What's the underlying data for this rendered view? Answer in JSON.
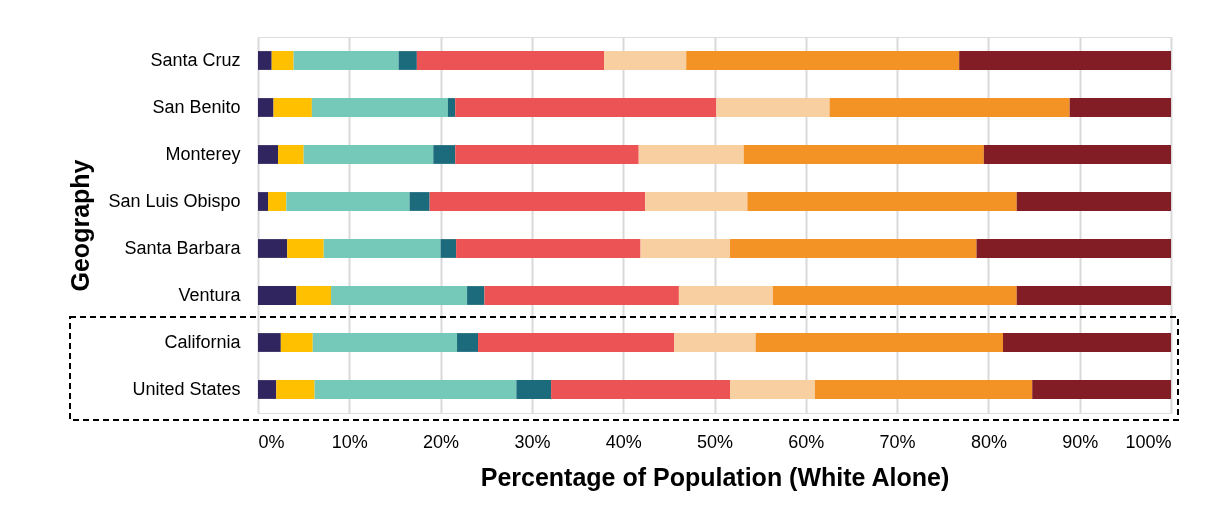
{
  "chart_data": {
    "type": "bar",
    "orientation": "horizontal",
    "stacked": true,
    "xlabel": "Percentage of Population (White Alone)",
    "ylabel": "Geography",
    "categories": [
      "Santa Cruz",
      "San Benito",
      "Monterey",
      "San Luis Obispo",
      "Santa Barbara",
      "Ventura",
      "California",
      "United States"
    ],
    "series": [
      {
        "color": "#30255f",
        "values": [
          1.5,
          1.7,
          2.2,
          1.1,
          3.2,
          4.2,
          2.5,
          2.0
        ]
      },
      {
        "color": "#ffc000",
        "values": [
          2.4,
          4.2,
          2.8,
          2.0,
          4.0,
          3.8,
          3.5,
          4.2
        ]
      },
      {
        "color": "#74c9b9",
        "values": [
          11.5,
          14.9,
          14.2,
          13.5,
          12.8,
          14.9,
          15.8,
          22.1
        ]
      },
      {
        "color": "#1c6b7d",
        "values": [
          2.0,
          0.8,
          2.4,
          2.2,
          1.7,
          1.9,
          2.3,
          3.8
        ]
      },
      {
        "color": "#ec5355",
        "values": [
          20.5,
          28.6,
          20.1,
          23.6,
          20.2,
          21.3,
          21.5,
          19.6
        ]
      },
      {
        "color": "#f8cfa0",
        "values": [
          9.0,
          12.4,
          11.5,
          11.2,
          9.8,
          10.3,
          8.9,
          9.3
        ]
      },
      {
        "color": "#f39325",
        "values": [
          29.9,
          26.3,
          26.3,
          29.5,
          27.0,
          26.7,
          27.1,
          23.8
        ]
      },
      {
        "color": "#821d25",
        "values": [
          23.2,
          11.1,
          20.5,
          16.9,
          21.3,
          16.9,
          18.4,
          15.2
        ]
      }
    ],
    "xlim": [
      0,
      100
    ],
    "xticks": [
      {
        "value": 0,
        "label": "0%"
      },
      {
        "value": 10,
        "label": "10%"
      },
      {
        "value": 20,
        "label": "20%"
      },
      {
        "value": 30,
        "label": "30%"
      },
      {
        "value": 40,
        "label": "40%"
      },
      {
        "value": 50,
        "label": "50%"
      },
      {
        "value": 60,
        "label": "60%"
      },
      {
        "value": 70,
        "label": "70%"
      },
      {
        "value": 80,
        "label": "80%"
      },
      {
        "value": 90,
        "label": "90%"
      },
      {
        "value": 100,
        "label": "100%"
      }
    ],
    "grid": "x",
    "legend": false
  }
}
